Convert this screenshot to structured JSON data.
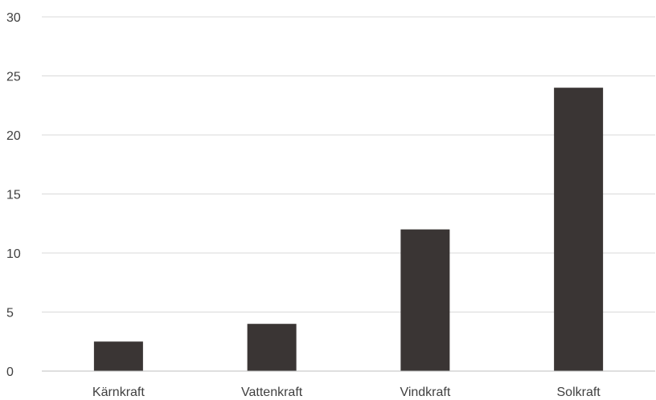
{
  "chart_data": {
    "type": "bar",
    "categories": [
      "Kärnkraft",
      "Vattenkraft",
      "Vindkraft",
      "Solkraft"
    ],
    "values": [
      2.5,
      4,
      12,
      24
    ],
    "title": "",
    "xlabel": "",
    "ylabel": "",
    "ylim": [
      0,
      30
    ],
    "yticks": [
      "0",
      "5",
      "10",
      "15",
      "20",
      "25",
      "30"
    ],
    "grid": true,
    "legend": "none",
    "bar_color": "#3a3534"
  }
}
